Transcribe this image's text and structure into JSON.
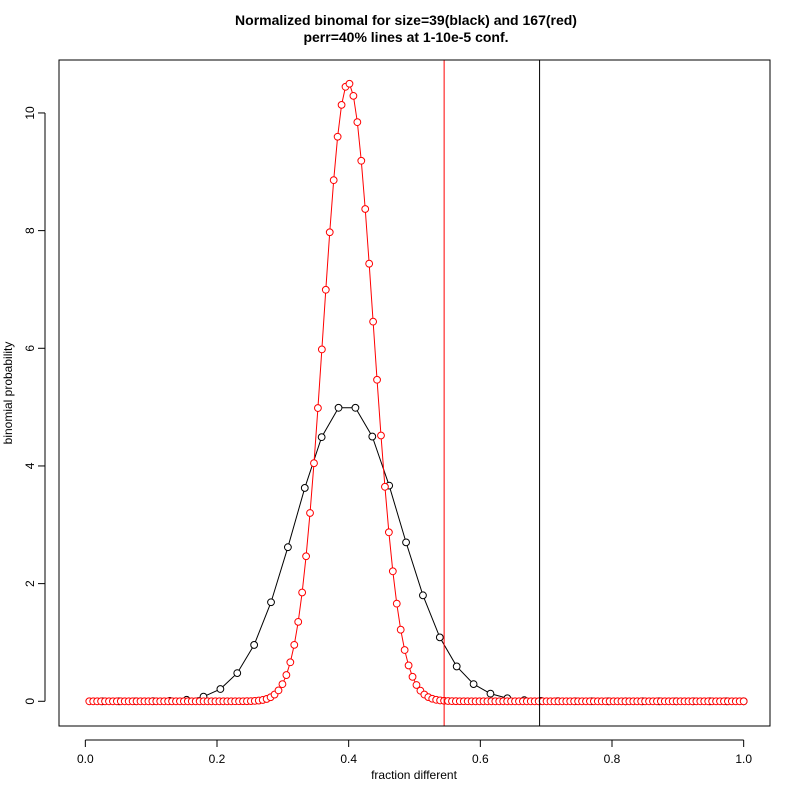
{
  "chart_data": {
    "type": "scatter",
    "title_line1": "Normalized binomal for size=39(black) and 167(red)",
    "title_line2": "perr=40% lines at 1-10e-5 conf.",
    "xlabel": "fraction different",
    "ylabel": "binomial probability",
    "xlim": [
      -0.04,
      1.04
    ],
    "ylim": [
      -0.42,
      10.9
    ],
    "x_ticks": [
      0.0,
      0.2,
      0.4,
      0.6,
      0.8,
      1.0
    ],
    "x_tick_labels": [
      "0.0",
      "0.2",
      "0.4",
      "0.6",
      "0.8",
      "1.0"
    ],
    "y_ticks": [
      0,
      2,
      4,
      6,
      8,
      10
    ],
    "y_tick_labels": [
      "0",
      "2",
      "4",
      "6",
      "8",
      "10"
    ],
    "grid": false,
    "series": [
      {
        "color": "#000000",
        "n": 39,
        "p": 0.4,
        "style": "points-connected"
      },
      {
        "color": "#ff0000",
        "n": 167,
        "p": 0.4,
        "style": "points-connected"
      }
    ],
    "vertical_lines": [
      {
        "x": 0.545,
        "color": "#ff0000"
      },
      {
        "x": 0.69,
        "color": "#000000"
      }
    ]
  }
}
